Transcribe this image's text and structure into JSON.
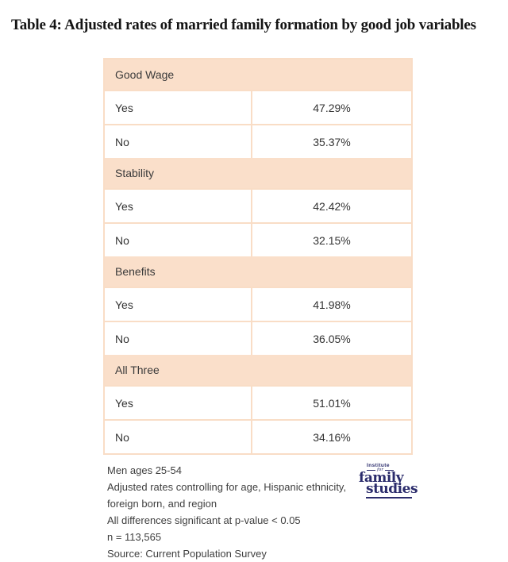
{
  "header": {
    "title": "Table 4: Adjusted rates of married family formation by good job variables"
  },
  "chart_data": {
    "type": "table",
    "title": "Table 4: Adjusted rates of married family formation by good job variables",
    "sections": [
      {
        "header": "Good Wage",
        "rows": [
          {
            "label": "Yes",
            "value": "47.29%",
            "value_num": 47.29
          },
          {
            "label": "No",
            "value": "35.37%",
            "value_num": 35.37
          }
        ]
      },
      {
        "header": "Stability",
        "rows": [
          {
            "label": "Yes",
            "value": "42.42%",
            "value_num": 42.42
          },
          {
            "label": "No",
            "value": "32.15%",
            "value_num": 32.15
          }
        ]
      },
      {
        "header": "Benefits",
        "rows": [
          {
            "label": "Yes",
            "value": "41.98%",
            "value_num": 41.98
          },
          {
            "label": "No",
            "value": "36.05%",
            "value_num": 36.05
          }
        ]
      },
      {
        "header": "All Three",
        "rows": [
          {
            "label": "Yes",
            "value": "51.01%",
            "value_num": 51.01
          },
          {
            "label": "No",
            "value": "34.16%",
            "value_num": 34.16
          }
        ]
      }
    ],
    "notes": [
      "Men ages 25-54",
      "Adjusted rates controlling for age, Hispanic ethnicity, foreign born, and region",
      "All differences significant at p-value < 0.05",
      "n = 113,565",
      "Source: Current Population Survey"
    ]
  },
  "footer": {
    "lines": [
      "Men ages 25-54",
      "Adjusted rates controlling for age, Hispanic ethnicity,",
      "foreign born, and region",
      "All differences significant at p-value < 0.05",
      "n = 113,565",
      "Source: Current Population Survey"
    ],
    "logo": {
      "institute": "Institute",
      "for_label": "for",
      "family": "family",
      "studies": "studies"
    }
  },
  "colors": {
    "section_header_bg": "#fadfca",
    "table_border": "#f9ddc6",
    "title_text": "#141414",
    "body_text": "#333333",
    "note_text": "#3f3f3f",
    "logo_navy": "#2b2c6c",
    "page_bg": "#ffffff"
  }
}
